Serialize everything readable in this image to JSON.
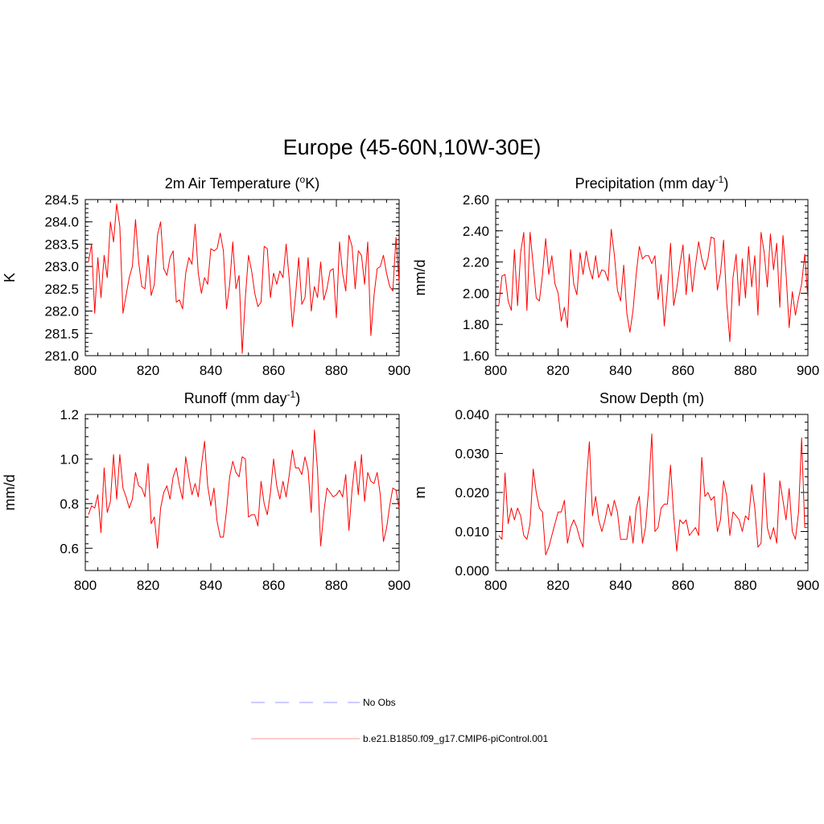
{
  "title": "Europe (45-60N,10W-30E)",
  "colors": {
    "series": "#ff0000",
    "obs": "#9999ff",
    "axis": "#000000"
  },
  "legend": [
    {
      "label": "No Obs",
      "style": "dashed",
      "color": "#9999ff"
    },
    {
      "label": "b.e21.B1850.f09_g17.CMIP6-piControl.001",
      "style": "solid",
      "color": "#ff9999"
    }
  ],
  "chart_data": [
    {
      "type": "line",
      "title": "2m Air Temperature (oK)",
      "title_parts": {
        "pre": "2m Air Temperature (",
        "sup": "o",
        "post": "K)"
      },
      "ylabel": "K",
      "xlim": [
        800,
        900
      ],
      "ylim": [
        281.0,
        284.5
      ],
      "xticks": [
        800,
        820,
        840,
        860,
        880,
        900
      ],
      "xtick_labels": [
        "800",
        "820",
        "840",
        "860",
        "880",
        "900"
      ],
      "yticks": [
        281.0,
        281.5,
        282.0,
        282.5,
        283.0,
        283.5,
        284.0,
        284.5
      ],
      "ytick_labels": [
        "281.0",
        "281.5",
        "282.0",
        "282.5",
        "283.0",
        "283.5",
        "284.0",
        "284.5"
      ],
      "x_start": 801,
      "series": [
        {
          "name": "b.e21.B1850.f09_g17.CMIP6-piControl.001",
          "values": [
            283.1,
            283.5,
            281.95,
            283.2,
            282.3,
            283.25,
            282.75,
            284.0,
            283.55,
            284.4,
            283.9,
            281.95,
            282.35,
            282.75,
            283.0,
            284.05,
            283.1,
            282.55,
            282.5,
            283.25,
            282.35,
            282.6,
            283.7,
            284.0,
            282.95,
            282.8,
            283.2,
            283.35,
            282.2,
            282.25,
            282.05,
            282.85,
            283.2,
            283.05,
            283.95,
            282.85,
            282.4,
            282.75,
            282.6,
            283.4,
            283.35,
            283.4,
            283.75,
            283.35,
            282.05,
            282.6,
            283.55,
            282.5,
            282.8,
            281.05,
            282.3,
            283.25,
            282.9,
            282.4,
            282.1,
            282.2,
            283.45,
            283.4,
            282.3,
            282.85,
            282.6,
            282.9,
            282.75,
            283.5,
            282.7,
            281.65,
            282.35,
            283.2,
            282.15,
            282.3,
            283.2,
            282.0,
            282.55,
            282.3,
            283.1,
            282.25,
            282.5,
            282.9,
            282.95,
            281.85,
            283.55,
            282.85,
            282.45,
            283.7,
            283.45,
            282.5,
            283.35,
            283.25,
            282.6,
            283.55,
            281.45,
            282.35,
            282.95,
            283.0,
            283.25,
            282.85,
            282.55,
            282.45,
            283.65,
            282.65
          ]
        }
      ]
    },
    {
      "type": "line",
      "title": "Precipitation (mm day-1)",
      "title_parts": {
        "pre": "Precipitation (mm day",
        "sup": "-1",
        "post": ")"
      },
      "ylabel": "mm/d",
      "xlim": [
        800,
        900
      ],
      "ylim": [
        1.6,
        2.6
      ],
      "xticks": [
        800,
        820,
        840,
        860,
        880,
        900
      ],
      "xtick_labels": [
        "800",
        "820",
        "840",
        "860",
        "880",
        "900"
      ],
      "yticks": [
        1.6,
        1.8,
        2.0,
        2.2,
        2.4,
        2.6
      ],
      "ytick_labels": [
        "1.60",
        "1.80",
        "2.00",
        "2.20",
        "2.40",
        "2.60"
      ],
      "x_start": 801,
      "series": [
        {
          "name": "b.e21.B1850.f09_g17.CMIP6-piControl.001",
          "values": [
            1.92,
            2.11,
            2.12,
            1.95,
            1.89,
            2.28,
            1.92,
            2.26,
            2.39,
            1.89,
            2.39,
            2.18,
            1.97,
            1.95,
            2.12,
            2.35,
            2.12,
            2.24,
            2.06,
            2.0,
            1.82,
            1.91,
            1.78,
            2.28,
            2.06,
            1.99,
            2.26,
            2.12,
            2.27,
            2.16,
            2.09,
            2.24,
            2.1,
            2.15,
            2.14,
            2.08,
            2.41,
            2.25,
            2.02,
            1.95,
            2.18,
            1.87,
            1.75,
            1.89,
            2.12,
            2.3,
            2.22,
            2.24,
            2.24,
            2.19,
            2.24,
            1.96,
            2.12,
            1.79,
            2.02,
            2.32,
            1.92,
            2.03,
            2.18,
            2.31,
            1.99,
            2.25,
            2.01,
            2.18,
            2.33,
            2.22,
            2.15,
            2.22,
            2.36,
            2.35,
            2.02,
            2.13,
            2.34,
            1.94,
            1.69,
            2.1,
            2.25,
            1.92,
            2.22,
            1.97,
            2.3,
            2.04,
            2.24,
            1.86,
            2.39,
            2.26,
            2.04,
            2.38,
            2.15,
            2.32,
            1.91,
            2.37,
            2.13,
            1.78,
            2.01,
            1.86,
            1.97,
            2.06,
            2.25,
            1.96
          ]
        }
      ]
    },
    {
      "type": "line",
      "title": "Runoff (mm day-1)",
      "title_parts": {
        "pre": "Runoff (mm day",
        "sup": "-1",
        "post": ")"
      },
      "ylabel": "mm/d",
      "xlim": [
        800,
        900
      ],
      "ylim": [
        0.5,
        1.2
      ],
      "xticks": [
        800,
        820,
        840,
        860,
        880,
        900
      ],
      "xtick_labels": [
        "800",
        "820",
        "840",
        "860",
        "880",
        "900"
      ],
      "yticks": [
        0.6,
        0.8,
        1.0,
        1.2
      ],
      "ytick_labels": [
        "0.6",
        "0.8",
        "1.0",
        "1.2"
      ],
      "x_start": 801,
      "series": [
        {
          "name": "b.e21.B1850.f09_g17.CMIP6-piControl.001",
          "values": [
            0.75,
            0.79,
            0.78,
            0.84,
            0.67,
            0.96,
            0.76,
            0.81,
            1.02,
            0.82,
            1.02,
            0.87,
            0.83,
            0.78,
            0.82,
            0.94,
            0.88,
            0.87,
            0.83,
            0.98,
            0.71,
            0.74,
            0.6,
            0.78,
            0.85,
            0.88,
            0.82,
            0.92,
            0.96,
            0.88,
            0.82,
            1.01,
            0.92,
            0.84,
            0.89,
            0.83,
            0.97,
            1.08,
            0.88,
            0.79,
            0.87,
            0.72,
            0.65,
            0.65,
            0.77,
            0.92,
            0.99,
            0.94,
            0.92,
            1.01,
            1.0,
            0.74,
            0.75,
            0.75,
            0.7,
            0.9,
            0.8,
            0.75,
            0.85,
            1.0,
            0.88,
            0.82,
            0.9,
            0.83,
            0.93,
            1.04,
            0.96,
            0.96,
            0.93,
            1.01,
            0.95,
            0.76,
            1.13,
            0.95,
            0.61,
            0.76,
            0.87,
            0.85,
            0.83,
            0.84,
            0.86,
            0.83,
            0.93,
            0.68,
            0.86,
            0.99,
            0.84,
            1.02,
            0.81,
            0.94,
            0.9,
            0.89,
            0.94,
            0.84,
            0.63,
            0.69,
            0.79,
            0.87,
            0.86,
            0.78
          ]
        }
      ]
    },
    {
      "type": "line",
      "title": "Snow Depth (m)",
      "title_parts": {
        "pre": "Snow Depth (m)",
        "sup": "",
        "post": ""
      },
      "ylabel": "m",
      "xlim": [
        800,
        900
      ],
      "ylim": [
        0.0,
        0.04
      ],
      "xticks": [
        800,
        820,
        840,
        860,
        880,
        900
      ],
      "xtick_labels": [
        "800",
        "820",
        "840",
        "860",
        "880",
        "900"
      ],
      "yticks": [
        0.0,
        0.01,
        0.02,
        0.03,
        0.04
      ],
      "ytick_labels": [
        "0.000",
        "0.010",
        "0.020",
        "0.030",
        "0.040"
      ],
      "x_start": 801,
      "series": [
        {
          "name": "b.e21.B1850.f09_g17.CMIP6-piControl.001",
          "values": [
            0.009,
            0.008,
            0.025,
            0.012,
            0.016,
            0.013,
            0.016,
            0.014,
            0.009,
            0.008,
            0.012,
            0.026,
            0.02,
            0.016,
            0.015,
            0.004,
            0.006,
            0.009,
            0.012,
            0.015,
            0.015,
            0.018,
            0.007,
            0.011,
            0.013,
            0.011,
            0.008,
            0.006,
            0.022,
            0.033,
            0.014,
            0.019,
            0.013,
            0.01,
            0.013,
            0.017,
            0.014,
            0.018,
            0.015,
            0.008,
            0.008,
            0.008,
            0.014,
            0.007,
            0.016,
            0.019,
            0.007,
            0.011,
            0.021,
            0.035,
            0.01,
            0.011,
            0.016,
            0.017,
            0.017,
            0.027,
            0.014,
            0.005,
            0.013,
            0.012,
            0.013,
            0.009,
            0.01,
            0.011,
            0.009,
            0.029,
            0.019,
            0.02,
            0.018,
            0.019,
            0.01,
            0.013,
            0.023,
            0.019,
            0.009,
            0.015,
            0.014,
            0.013,
            0.01,
            0.014,
            0.013,
            0.022,
            0.016,
            0.006,
            0.007,
            0.025,
            0.011,
            0.008,
            0.011,
            0.007,
            0.023,
            0.018,
            0.013,
            0.021,
            0.01,
            0.008,
            0.015,
            0.034,
            0.011,
            0.011
          ]
        }
      ]
    }
  ]
}
